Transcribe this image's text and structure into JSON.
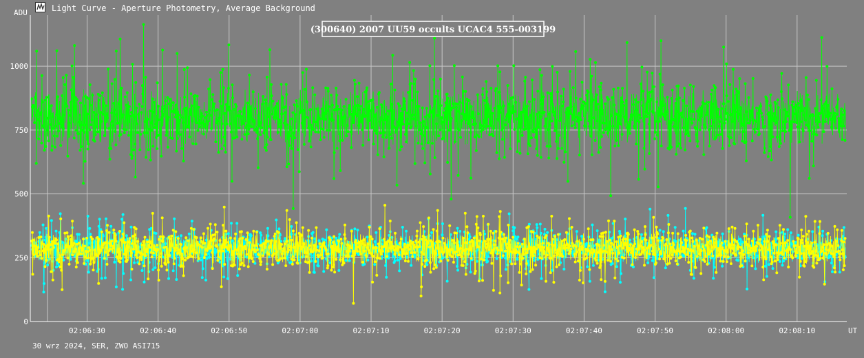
{
  "window": {
    "title": "Light Curve - Aperture Photometry, Average Background",
    "icon": "light-curve-icon"
  },
  "footer": {
    "caption": "30 wrz 2024, SER, ZWO ASI715"
  },
  "colors": {
    "background": "#808080",
    "grid": "#c8c8c8",
    "axis_text": "#ffffff"
  },
  "chart_data": {
    "type": "scatter",
    "title": "(300640) 2007 UU59 occults UCAC4 555-003199",
    "ylabel": "ADU",
    "xlabel": "UT",
    "grid": true,
    "x_unit": "UT",
    "xlim": [
      "02:06:22",
      "02:08:17"
    ],
    "ylim": [
      0,
      1200
    ],
    "x_ticks": [
      "02:06:30",
      "02:06:40",
      "02:06:50",
      "02:07:00",
      "02:07:10",
      "02:07:20",
      "02:07:30",
      "02:07:40",
      "02:07:50",
      "02:08:00",
      "02:08:10"
    ],
    "y_ticks": [
      0,
      250,
      500,
      750,
      1000
    ],
    "series": [
      {
        "color": "#00ff00",
        "mean": 800,
        "spread": 110,
        "points": 2300
      },
      {
        "color": "#00ffff",
        "mean": 285,
        "spread": 55,
        "points": 2300
      },
      {
        "color": "#ffff00",
        "mean": 285,
        "spread": 60,
        "points": 2300
      }
    ]
  }
}
